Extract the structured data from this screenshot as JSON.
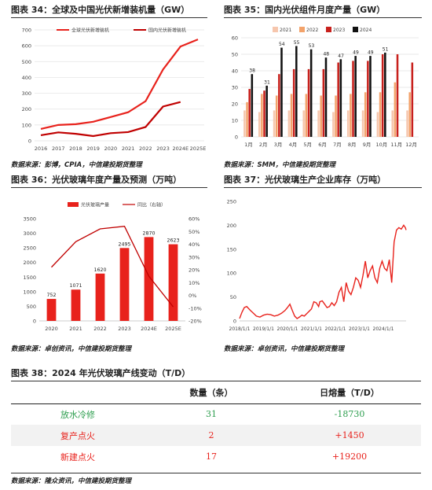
{
  "figures": {
    "f34": {
      "title": "图表 34：全球及中国光伏新增装机量（GW）",
      "source": "数据来源：彭博，CPIA，中信建投期货整理"
    },
    "f35": {
      "title": "图表 35：国内光伏组件月度产量（GW）",
      "source": "数据来源：SMM，中信建投期货整理"
    },
    "f36": {
      "title": "图表 36：光伏玻璃年度产量及预测（万吨）",
      "source": "数据来源：卓创资讯，中信建投期货整理"
    },
    "f37": {
      "title": "图表 37：光伏玻璃生产企业库存（万吨）",
      "source": "数据来源：卓创资讯，中信建投期货整理"
    },
    "f38": {
      "title": "图表 38：2024 年光伏玻璃产线变动（T/D）",
      "source": "数据来源：隆众资讯，中信建投期货整理"
    }
  },
  "chart_data": [
    {
      "id": "f34",
      "type": "line",
      "categories": [
        "2016",
        "2017",
        "2018",
        "2019",
        "2020",
        "2021",
        "2022",
        "2023",
        "2024E",
        "2025E"
      ],
      "ylim": [
        0,
        700
      ],
      "yticks": [
        0,
        100,
        200,
        300,
        400,
        500,
        600,
        700
      ],
      "legend_position": "top",
      "grid": true,
      "series": [
        {
          "name": "全球光伏新增装机",
          "color": "#e8221c",
          "values": [
            75,
            100,
            105,
            120,
            150,
            180,
            250,
            450,
            595,
            640
          ]
        },
        {
          "name": "国内光伏新增装机",
          "color": "#c00000",
          "values": [
            35,
            53,
            44,
            30,
            48,
            55,
            87,
            216,
            245,
            null
          ]
        }
      ]
    },
    {
      "id": "f35",
      "type": "bar",
      "categories": [
        "1月",
        "2月",
        "3月",
        "4月",
        "5月",
        "6月",
        "7月",
        "8月",
        "9月",
        "10月",
        "11月",
        "12月"
      ],
      "ylim": [
        0,
        60
      ],
      "yticks": [
        0,
        10,
        20,
        30,
        40,
        50,
        60
      ],
      "legend_position": "top",
      "grid": true,
      "series": [
        {
          "name": "2021",
          "color": "#f6c6ad",
          "values": [
            16,
            15,
            16,
            16,
            16,
            16,
            15,
            16,
            16,
            15,
            16,
            16
          ]
        },
        {
          "name": "2022",
          "color": "#f3a36b",
          "values": [
            21,
            26,
            25,
            26,
            26,
            25,
            25,
            26,
            27,
            27,
            33,
            27
          ]
        },
        {
          "name": "2023",
          "color": "#c8201c",
          "values": [
            29,
            28,
            38,
            41,
            41,
            41,
            45,
            46,
            46,
            50,
            50,
            45
          ]
        },
        {
          "name": "2024",
          "color": "#111111",
          "values": [
            38,
            31,
            54,
            55,
            53,
            48,
            47,
            49,
            49,
            51,
            null,
            null
          ]
        }
      ],
      "data_labels_series": "2024",
      "data_labels": [
        38,
        31,
        54,
        55,
        53,
        48,
        47,
        49,
        49,
        51,
        null,
        null
      ]
    },
    {
      "id": "f36",
      "type": "bar",
      "categories": [
        "2020",
        "2021",
        "2022",
        "2023",
        "2024E",
        "2025E"
      ],
      "ylim": [
        0,
        3500
      ],
      "yticks": [
        0,
        500,
        1000,
        1500,
        2000,
        2500,
        3000,
        3500
      ],
      "y2lim": [
        -20,
        60
      ],
      "y2ticks": [
        "-20%",
        "-10%",
        "0%",
        "10%",
        "20%",
        "30%",
        "40%",
        "50%",
        "60%"
      ],
      "legend_position": "top",
      "grid": false,
      "series": [
        {
          "name": "光伏玻璃产量",
          "color": "#e8221c",
          "values": [
            752,
            1071,
            1620,
            2495,
            2870,
            2623
          ]
        },
        {
          "name": "同比（右轴）",
          "color": "#c00000",
          "axis": "right",
          "values": [
            22,
            42,
            52,
            54,
            15,
            -9
          ]
        }
      ],
      "data_labels": [
        "752",
        "1071",
        "1620",
        "2495",
        "2870",
        "2623"
      ]
    },
    {
      "id": "f37",
      "type": "line",
      "x_ticks": [
        "2018/1/1",
        "2019/1/1",
        "2020/1/1",
        "2021/1/1",
        "2022/1/1",
        "2023/1/1",
        "2024/1/1"
      ],
      "x_range": [
        2018.0,
        2024.95
      ],
      "ylim": [
        0,
        250
      ],
      "yticks": [
        0,
        50,
        100,
        150,
        200,
        250
      ],
      "grid": false,
      "series": [
        {
          "name": "",
          "color": "#e8221c",
          "x": [
            2018.0,
            2018.1,
            2018.2,
            2018.3,
            2018.45,
            2018.6,
            2018.7,
            2018.85,
            2019.0,
            2019.15,
            2019.3,
            2019.45,
            2019.6,
            2019.75,
            2019.9,
            2020.0,
            2020.1,
            2020.2,
            2020.3,
            2020.4,
            2020.5,
            2020.6,
            2020.7,
            2020.8,
            2020.9,
            2021.0,
            2021.1,
            2021.2,
            2021.3,
            2021.35,
            2021.45,
            2021.55,
            2021.65,
            2021.75,
            2021.85,
            2021.95,
            2022.05,
            2022.15,
            2022.25,
            2022.35,
            2022.45,
            2022.55,
            2022.65,
            2022.75,
            2022.85,
            2022.95,
            2023.05,
            2023.15,
            2023.25,
            2023.35,
            2023.45,
            2023.55,
            2023.65,
            2023.75,
            2023.85,
            2023.95,
            2024.05,
            2024.15,
            2024.25,
            2024.35,
            2024.45,
            2024.55,
            2024.65,
            2024.75,
            2024.85,
            2024.92,
            2024.95
          ],
          "values": [
            5,
            18,
            28,
            30,
            22,
            15,
            10,
            8,
            12,
            14,
            13,
            10,
            12,
            16,
            22,
            28,
            35,
            22,
            10,
            5,
            8,
            12,
            10,
            15,
            20,
            25,
            40,
            38,
            30,
            40,
            42,
            35,
            28,
            30,
            38,
            32,
            40,
            60,
            70,
            40,
            80,
            62,
            55,
            70,
            90,
            85,
            70,
            95,
            125,
            90,
            105,
            115,
            90,
            80,
            110,
            125,
            110,
            105,
            128,
            80,
            165,
            190,
            195,
            192,
            200,
            195,
            190
          ]
        }
      ]
    }
  ],
  "table38": {
    "headers": [
      "",
      "数量（条）",
      "日熔量（T/D）"
    ],
    "rows": [
      {
        "label": "放水冷修",
        "count": "31",
        "capacity": "-18730",
        "color": "#2e9e4f"
      },
      {
        "label": "复产点火",
        "count": "2",
        "capacity": "+1450",
        "color": "#e8221c"
      },
      {
        "label": "新建点火",
        "count": "17",
        "capacity": "+19200",
        "color": "#e8221c"
      }
    ]
  }
}
